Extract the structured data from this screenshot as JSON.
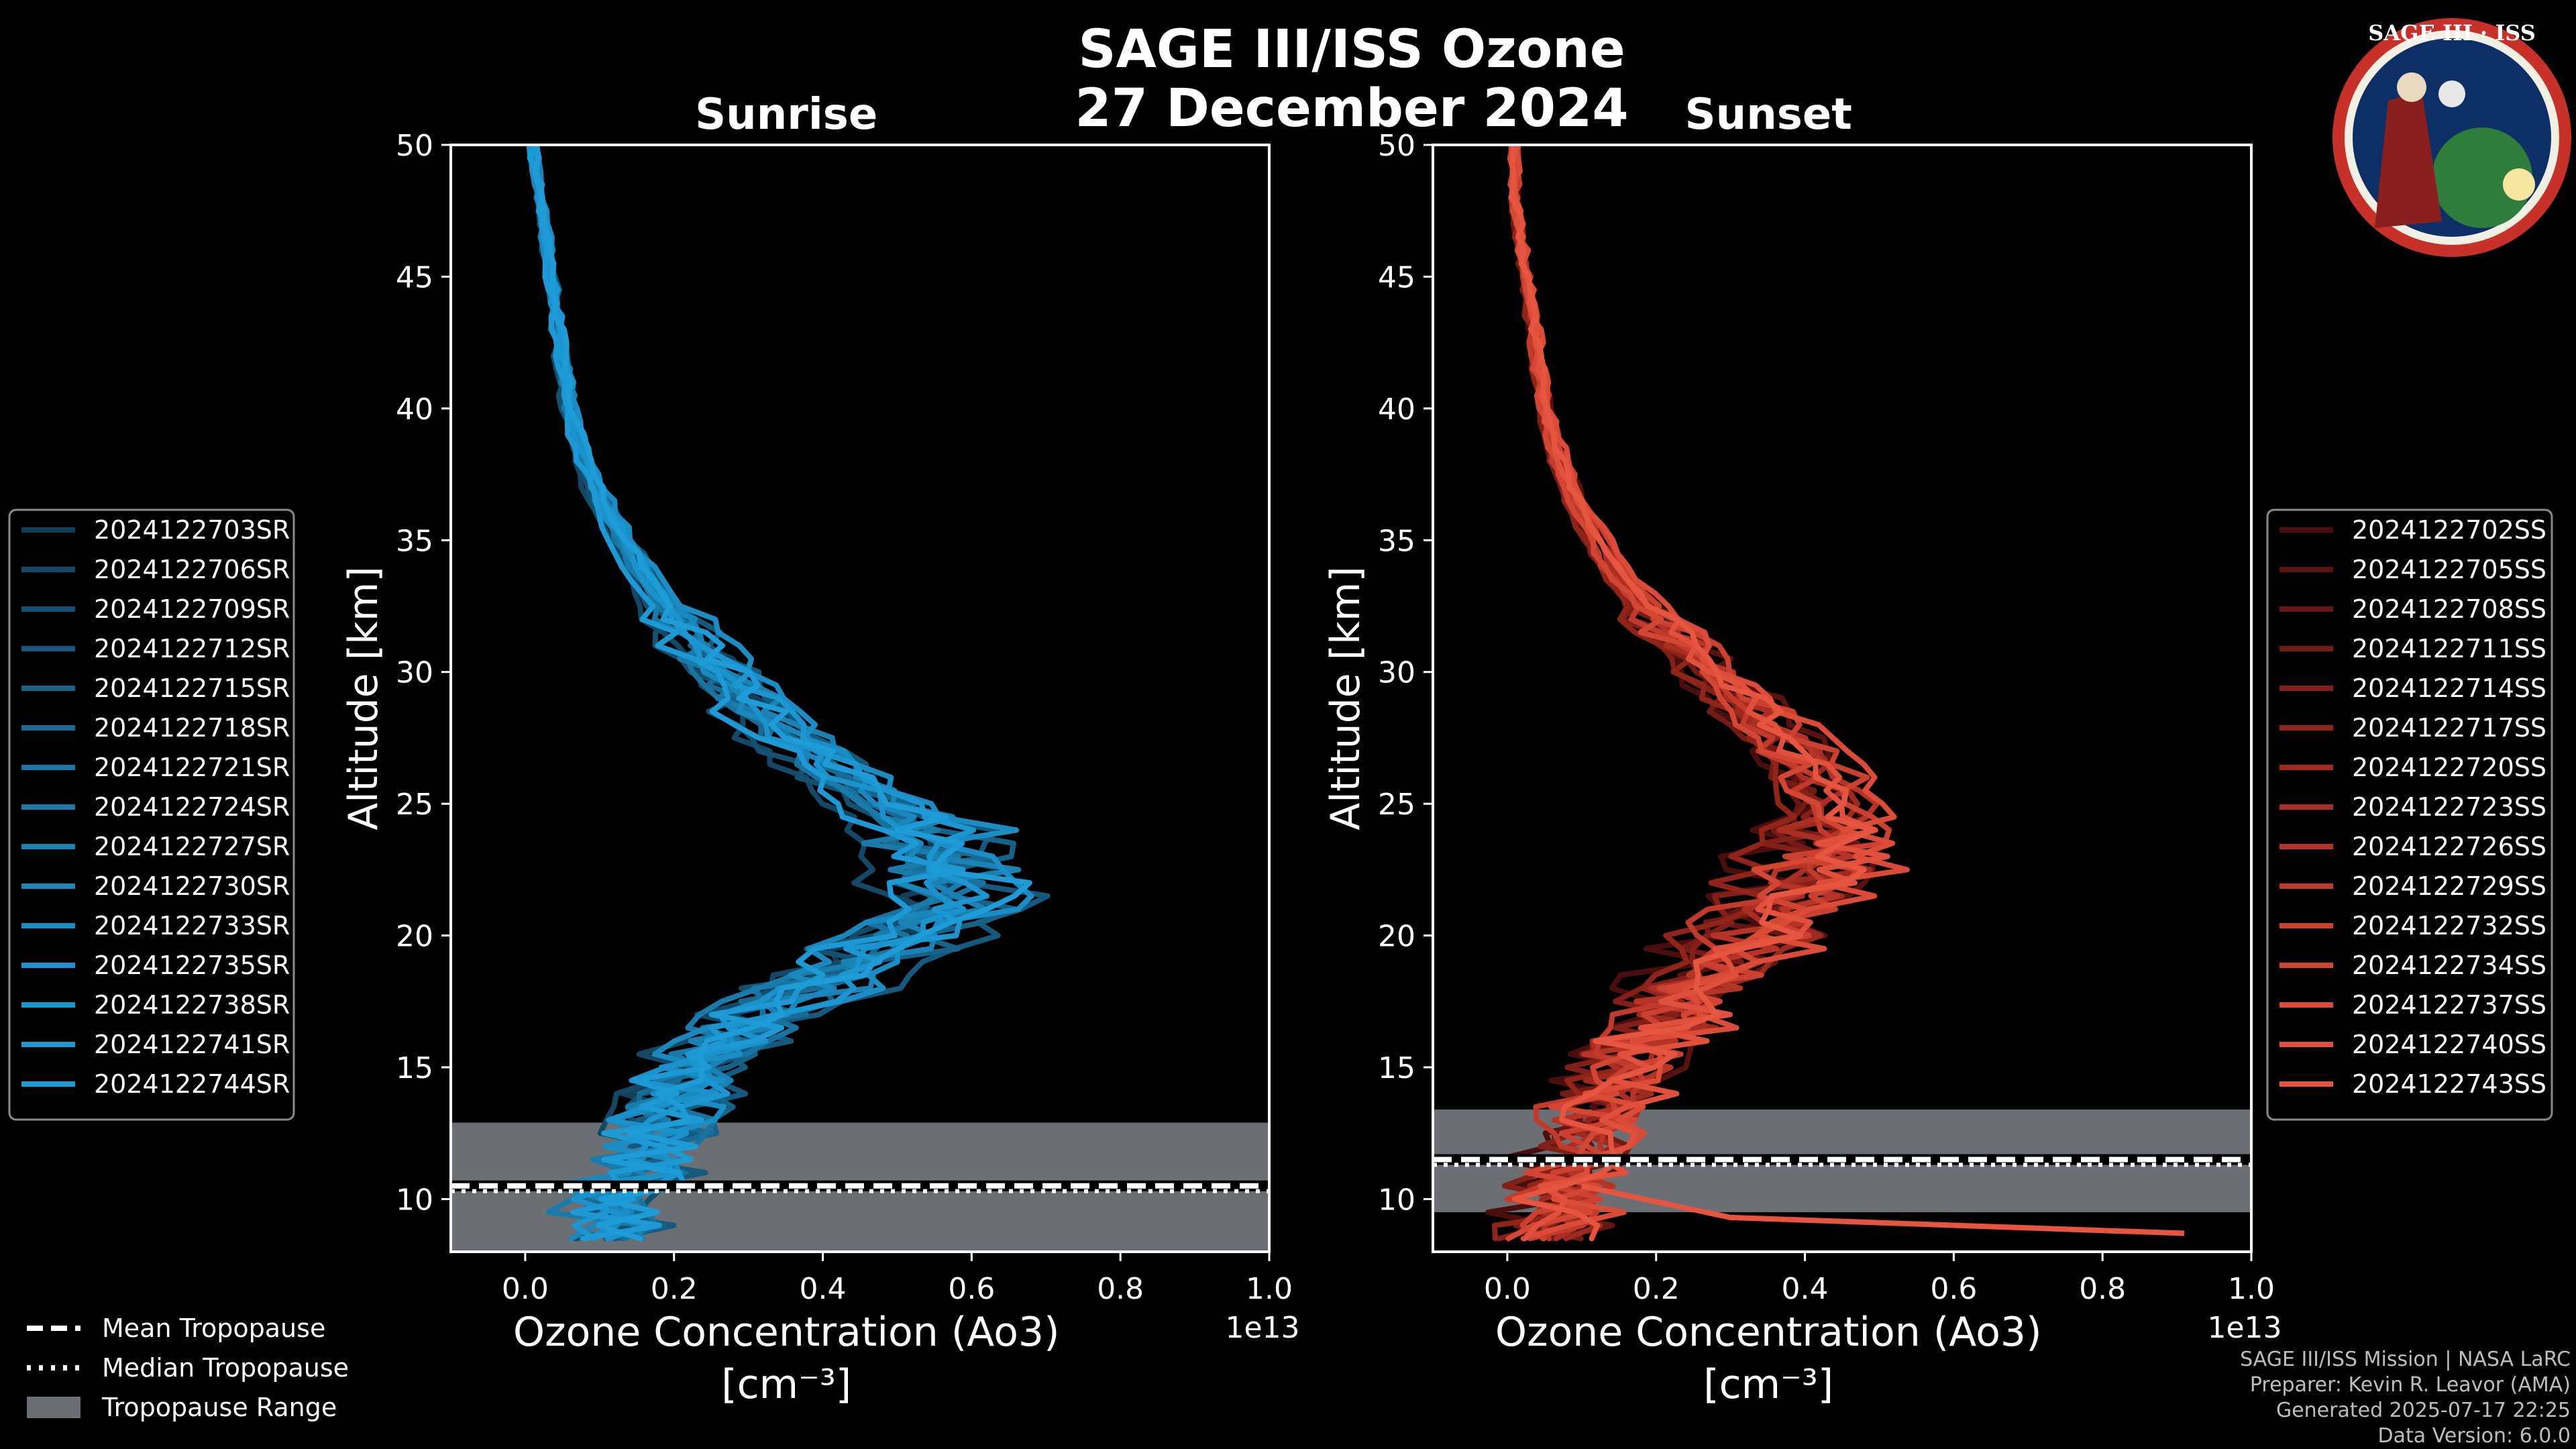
{
  "title": "SAGE III/ISS Ozone",
  "subtitle": "27 December 2024",
  "logo": {
    "text": "SAGE III · ISS"
  },
  "x_exponent": "1e13",
  "colors": {
    "sunrise": "#1e9ad6",
    "sunset": "#e8513f",
    "tropopause_fill": "#6b6f73",
    "background": "#000000"
  },
  "chart_data": [
    {
      "type": "line",
      "panel": "sunrise",
      "title": "Sunrise",
      "xlabel": "Ozone Concentration (Ao3)",
      "xunit": "[cm⁻³]",
      "ylabel": "Altitude [km]",
      "xlim": [
        -0.1,
        1.0
      ],
      "ylim": [
        8,
        50
      ],
      "x_ticks": [
        "0.0",
        "0.2",
        "0.4",
        "0.6",
        "0.8",
        "1.0"
      ],
      "x_tick_values": [
        0,
        0.2,
        0.4,
        0.6,
        0.8,
        1.0
      ],
      "y_ticks": [
        "10",
        "15",
        "20",
        "25",
        "30",
        "35",
        "40",
        "45",
        "50"
      ],
      "y_tick_values": [
        10,
        15,
        20,
        25,
        30,
        35,
        40,
        45,
        50
      ],
      "profile": {
        "alt": [
          50,
          48,
          46,
          44,
          42,
          40,
          38,
          36,
          34,
          32,
          30,
          28,
          27,
          26,
          25,
          24,
          23,
          22,
          21,
          20,
          19,
          18,
          17,
          16,
          15,
          14,
          13,
          12,
          11,
          10,
          9,
          8.5
        ],
        "o3": [
          0.01,
          0.02,
          0.03,
          0.04,
          0.05,
          0.06,
          0.08,
          0.11,
          0.15,
          0.2,
          0.26,
          0.33,
          0.38,
          0.43,
          0.48,
          0.53,
          0.56,
          0.57,
          0.55,
          0.5,
          0.44,
          0.38,
          0.32,
          0.27,
          0.23,
          0.2,
          0.18,
          0.16,
          0.14,
          0.12,
          0.11,
          0.1
        ]
      },
      "tropopause": {
        "mean": 10.5,
        "median": 10.3,
        "range": [
          8,
          12.9
        ]
      },
      "series": [
        {
          "name": "2024122703SR",
          "color": "#123f5a"
        },
        {
          "name": "2024122706SR",
          "color": "#134866"
        },
        {
          "name": "2024122709SR",
          "color": "#145171"
        },
        {
          "name": "2024122712SR",
          "color": "#155a7e"
        },
        {
          "name": "2024122715SR",
          "color": "#16638a"
        },
        {
          "name": "2024122718SR",
          "color": "#176b95"
        },
        {
          "name": "2024122721SR",
          "color": "#1873a0"
        },
        {
          "name": "2024122724SR",
          "color": "#197baa"
        },
        {
          "name": "2024122727SR",
          "color": "#1a82b4"
        },
        {
          "name": "2024122730SR",
          "color": "#1b88bd"
        },
        {
          "name": "2024122733SR",
          "color": "#1b8dc5"
        },
        {
          "name": "2024122735SR",
          "color": "#1c92cc"
        },
        {
          "name": "2024122738SR",
          "color": "#1c96d1"
        },
        {
          "name": "2024122741SR",
          "color": "#1d99d5"
        },
        {
          "name": "2024122744SR",
          "color": "#1e9cd8"
        }
      ]
    },
    {
      "type": "line",
      "panel": "sunset",
      "title": "Sunset",
      "xlabel": "Ozone Concentration (Ao3)",
      "xunit": "[cm⁻³]",
      "ylabel": "Altitude [km]",
      "xlim": [
        -0.1,
        1.0
      ],
      "ylim": [
        8,
        50
      ],
      "x_ticks": [
        "0.0",
        "0.2",
        "0.4",
        "0.6",
        "0.8",
        "1.0"
      ],
      "x_tick_values": [
        0,
        0.2,
        0.4,
        0.6,
        0.8,
        1.0
      ],
      "y_ticks": [
        "10",
        "15",
        "20",
        "25",
        "30",
        "35",
        "40",
        "45",
        "50"
      ],
      "y_tick_values": [
        10,
        15,
        20,
        25,
        30,
        35,
        40,
        45,
        50
      ],
      "profile": {
        "alt": [
          50,
          48,
          46,
          44,
          42,
          40,
          38,
          36,
          34,
          32,
          30,
          29,
          28,
          27,
          26,
          25,
          24,
          23,
          22,
          21,
          20,
          19,
          18,
          17,
          16,
          15,
          14,
          13,
          12,
          11,
          10,
          9,
          8.5
        ],
        "o3": [
          0.01,
          0.01,
          0.02,
          0.03,
          0.04,
          0.05,
          0.07,
          0.1,
          0.14,
          0.2,
          0.27,
          0.31,
          0.35,
          0.39,
          0.42,
          0.44,
          0.43,
          0.42,
          0.4,
          0.37,
          0.33,
          0.29,
          0.25,
          0.22,
          0.19,
          0.16,
          0.14,
          0.12,
          0.1,
          0.09,
          0.08,
          0.07,
          0.06
        ]
      },
      "tropopause": {
        "mean": 11.5,
        "median": 11.3,
        "range": [
          9.5,
          13.4
        ]
      },
      "series": [
        {
          "name": "2024122702SS",
          "color": "#4a0e0e"
        },
        {
          "name": "2024122705SS",
          "color": "#581210"
        },
        {
          "name": "2024122708SS",
          "color": "#661612"
        },
        {
          "name": "2024122711SS",
          "color": "#741b15"
        },
        {
          "name": "2024122714SS",
          "color": "#821f18"
        },
        {
          "name": "2024122717SS",
          "color": "#90241b"
        },
        {
          "name": "2024122720SS",
          "color": "#9d291f"
        },
        {
          "name": "2024122723SS",
          "color": "#aa2e23"
        },
        {
          "name": "2024122726SS",
          "color": "#b63427"
        },
        {
          "name": "2024122729SS",
          "color": "#c13a2c"
        },
        {
          "name": "2024122732SS",
          "color": "#cb4030"
        },
        {
          "name": "2024122734SS",
          "color": "#d44634"
        },
        {
          "name": "2024122737SS",
          "color": "#db4b38"
        },
        {
          "name": "2024122740SS",
          "color": "#e1503c"
        },
        {
          "name": "2024122743SS",
          "color": "#e6553f"
        }
      ]
    }
  ],
  "bottom_legend": {
    "items": [
      {
        "label": "Mean Tropopause",
        "style": "dashed"
      },
      {
        "label": "Median Tropopause",
        "style": "dotted"
      },
      {
        "label": "Tropopause Range",
        "style": "fill"
      }
    ]
  },
  "footer": {
    "lines": [
      "SAGE III/ISS Mission | NASA LaRC",
      "Preparer: Kevin R. Leavor (AMA)",
      "Generated 2025-07-17 22:25",
      "Data Version: 6.0.0"
    ]
  }
}
